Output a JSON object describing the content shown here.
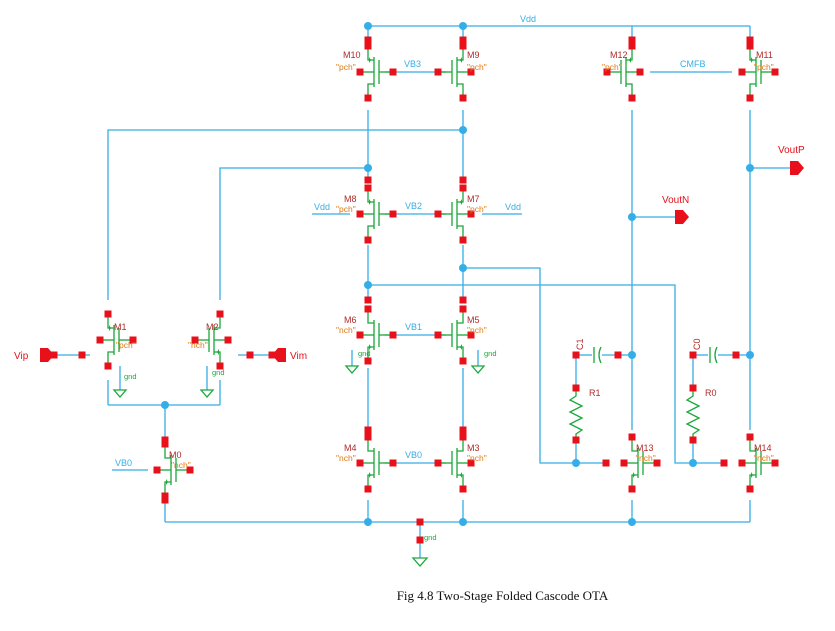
{
  "figure": {
    "caption": "Fig 4.8 Two-Stage Folded Cascode OTA"
  },
  "nets": {
    "vdd": "Vdd",
    "vdd_left": "Vdd",
    "vdd_right": "Vdd",
    "vb3": "VB3",
    "vb2": "VB2",
    "vb1": "VB1",
    "vb0_cascode": "VB0",
    "vb0_tail": "VB0",
    "cmfb": "CMFB",
    "gnd_m1": "gnd",
    "gnd_m2": "gnd",
    "gnd_m6": "gnd",
    "gnd_m5": "gnd",
    "gnd_bottom": "gnd"
  },
  "ports": {
    "vip": "Vip",
    "vim": "Vim",
    "voutp": "VoutP",
    "voutn": "VoutN"
  },
  "devices": [
    {
      "id": "m10",
      "name": "M10",
      "type": "\"pch\""
    },
    {
      "id": "m9",
      "name": "M9",
      "type": "\"pch\""
    },
    {
      "id": "m8",
      "name": "M8",
      "type": "\"pch\""
    },
    {
      "id": "m7",
      "name": "M7",
      "type": "\"pch\""
    },
    {
      "id": "m6",
      "name": "M6",
      "type": "\"nch\""
    },
    {
      "id": "m5",
      "name": "M5",
      "type": "\"nch\""
    },
    {
      "id": "m4",
      "name": "M4",
      "type": "\"nch\""
    },
    {
      "id": "m3",
      "name": "M3",
      "type": "\"nch\""
    },
    {
      "id": "m1",
      "name": "M1",
      "type": "\"pch\""
    },
    {
      "id": "m2",
      "name": "M2",
      "type": "\"nch\""
    },
    {
      "id": "m0",
      "name": "M0",
      "type": "\"nch\""
    },
    {
      "id": "m12",
      "name": "M12",
      "type": "\"pch\""
    },
    {
      "id": "m11",
      "name": "M11",
      "type": "\"pch\""
    },
    {
      "id": "m13",
      "name": "M13",
      "type": "\"nch\""
    },
    {
      "id": "m14",
      "name": "M14",
      "type": "\"nch\""
    }
  ],
  "passives": {
    "c1": "C1",
    "c0": "C0",
    "r1": "R1",
    "r0": "R0"
  },
  "colors": {
    "wire": "#35aee8",
    "device": "#1aa83a",
    "pin": "#e8101a",
    "device_label": "#b02a2a",
    "type_label": "#e07a14"
  }
}
